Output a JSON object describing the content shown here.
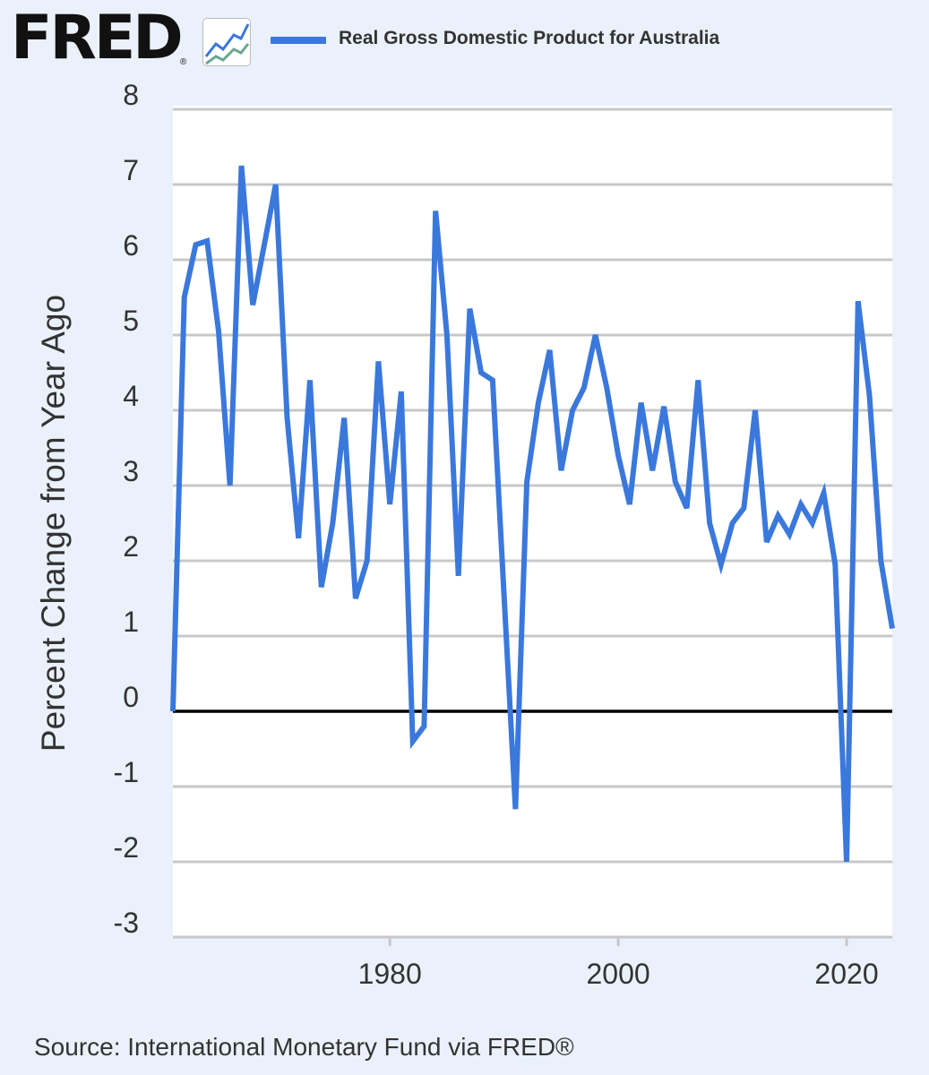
{
  "header": {
    "logo_text": "FRED",
    "logo_reg": "®",
    "logo_icon": "line-chart-icon",
    "legend_label": "Real Gross Domestic Product for Australia"
  },
  "source": "Source: International Monetary Fund via FRED®",
  "colors": {
    "background": "#eaf1fa",
    "plot_bg": "#ffffff",
    "series": "#3b78dc",
    "grid": "#c8c8c8",
    "zero_line": "#000000",
    "text": "#333333"
  },
  "chart_data": {
    "type": "line",
    "ylabel": "Percent Change from Year Ago",
    "xlabel": "",
    "ylim": [
      -3,
      8
    ],
    "xlim": [
      1961,
      2024
    ],
    "y_ticks": [
      "8",
      "7",
      "6",
      "5",
      "4",
      "3",
      "2",
      "1",
      "0",
      "-1",
      "-2",
      "-3"
    ],
    "x_ticks": [
      "1980",
      "2000",
      "2020"
    ],
    "grid": true,
    "series": [
      {
        "name": "Real Gross Domestic Product for Australia",
        "x": [
          1961,
          1962,
          1963,
          1964,
          1965,
          1966,
          1967,
          1968,
          1969,
          1970,
          1971,
          1972,
          1973,
          1974,
          1975,
          1976,
          1977,
          1978,
          1979,
          1980,
          1981,
          1982,
          1983,
          1984,
          1985,
          1986,
          1987,
          1988,
          1989,
          1990,
          1991,
          1992,
          1993,
          1994,
          1995,
          1996,
          1997,
          1998,
          1999,
          2000,
          2001,
          2002,
          2003,
          2004,
          2005,
          2006,
          2007,
          2008,
          2009,
          2010,
          2011,
          2012,
          2013,
          2014,
          2015,
          2016,
          2017,
          2018,
          2019,
          2020,
          2021,
          2022,
          2023,
          2024
        ],
        "values": [
          0.0,
          5.5,
          6.2,
          6.25,
          5.05,
          3.0,
          7.25,
          5.4,
          6.2,
          7.0,
          3.9,
          2.3,
          4.4,
          1.65,
          2.5,
          3.9,
          1.5,
          2.0,
          4.65,
          2.75,
          4.25,
          -0.4,
          -0.2,
          6.65,
          5.0,
          1.8,
          5.35,
          4.5,
          4.4,
          1.55,
          -1.3,
          3.05,
          4.1,
          4.8,
          3.2,
          4.0,
          4.3,
          5.0,
          4.3,
          3.4,
          2.75,
          4.1,
          3.2,
          4.05,
          3.05,
          2.7,
          4.4,
          2.5,
          1.95,
          2.5,
          2.7,
          4.0,
          2.25,
          2.6,
          2.35,
          2.75,
          2.5,
          2.9,
          1.95,
          -2.0,
          5.45,
          4.2,
          2.0,
          1.1
        ]
      }
    ]
  }
}
